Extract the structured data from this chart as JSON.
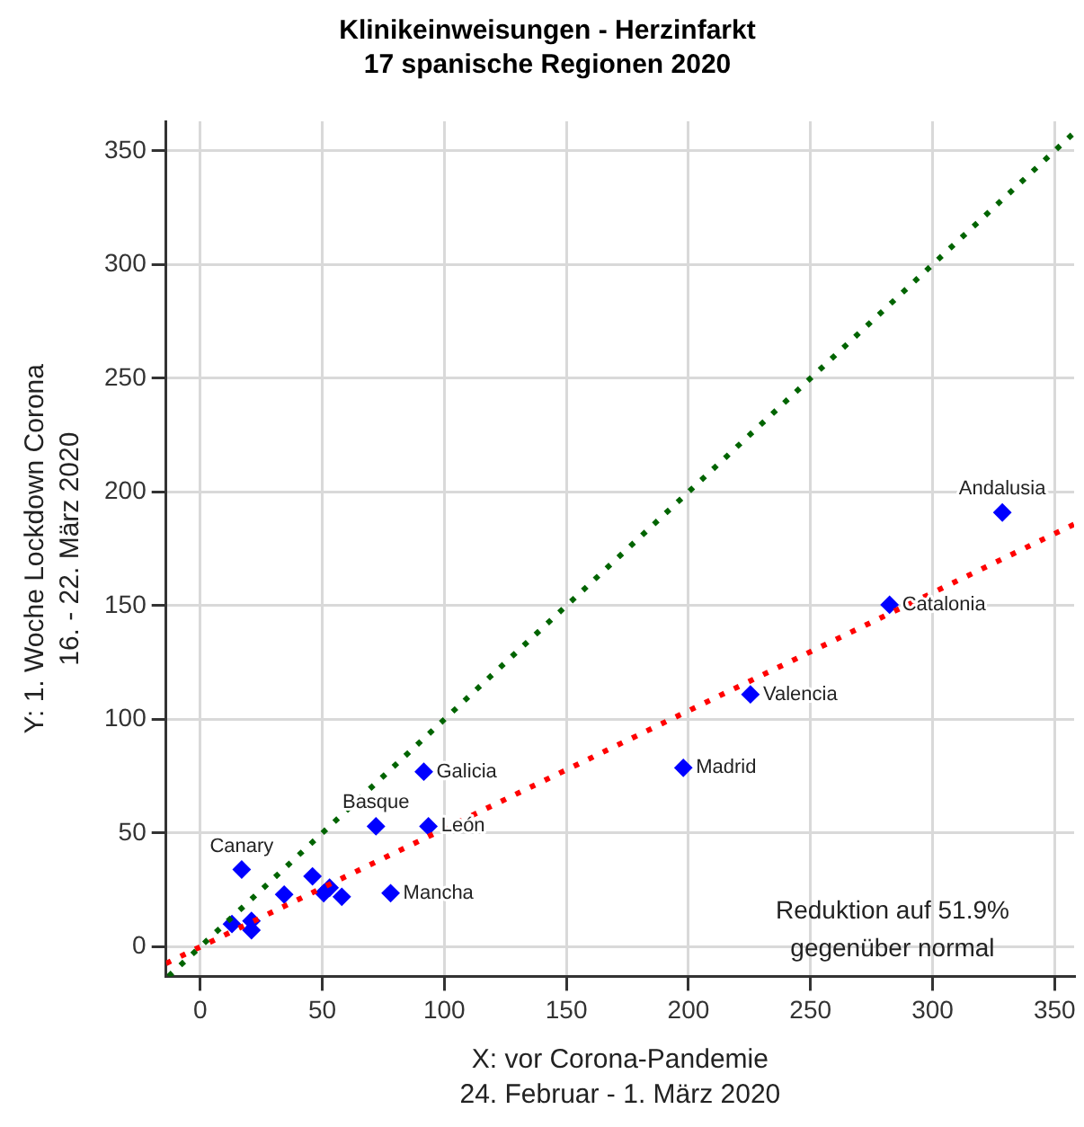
{
  "chart_data": {
    "type": "scatter",
    "title": "Klinikeinweisungen - Herzinfarkt\n17 spanische Regionen 2020",
    "xlabel": "X: vor Corona-Pandemie\n24. Februar - 1. März 2020",
    "ylabel": "Y: 1. Woche Lockdown Corona\n16. - 22. März 2020",
    "xlim": [
      -14,
      358
    ],
    "ylim": [
      -13,
      363
    ],
    "xticks": [
      0,
      50,
      100,
      150,
      200,
      250,
      300,
      350
    ],
    "yticks": [
      0,
      50,
      100,
      150,
      200,
      250,
      300,
      350
    ],
    "grid": true,
    "legend": false,
    "series": [
      {
        "type": "line",
        "color": "#006400",
        "line_style": "dotted",
        "marker": "none",
        "x": [
          -13,
          358
        ],
        "values": [
          -13,
          358
        ]
      },
      {
        "type": "line",
        "color": "#ff0000",
        "line_style": "dotted",
        "marker": "none",
        "x": [
          -14,
          358
        ],
        "values": [
          -7.3,
          185.8
        ]
      },
      {
        "color": "#0000ff",
        "marker": "diamond",
        "x": [
          328.6,
          282.4,
          225.4,
          197.9,
          91.6,
          72,
          93.5,
          17,
          78,
          46,
          34.4,
          50.6,
          53,
          58,
          13,
          21,
          21
        ],
        "values": [
          191,
          150.4,
          111,
          78.7,
          77,
          53,
          53,
          34,
          23.6,
          31,
          23,
          23.6,
          26,
          22,
          10,
          11.4,
          7.3
        ]
      }
    ],
    "annotations": [
      {
        "text": "Andalusia",
        "x": 328.6,
        "y": 191
      },
      {
        "text": "Catalonia",
        "x": 282.4,
        "y": 150.4
      },
      {
        "text": "Valencia",
        "x": 225.4,
        "y": 111
      },
      {
        "text": "Madrid",
        "x": 197.9,
        "y": 78.7
      },
      {
        "text": "Galicia",
        "x": 91.6,
        "y": 77
      },
      {
        "text": "León",
        "x": 93.5,
        "y": 53
      },
      {
        "text": "Basque",
        "x": 72,
        "y": 53
      },
      {
        "text": "Canary",
        "x": 17,
        "y": 34
      },
      {
        "text": "Mancha",
        "x": 78,
        "y": 23.6
      },
      "Reduktion auf 51.9%\ngegenüber normal"
    ]
  }
}
